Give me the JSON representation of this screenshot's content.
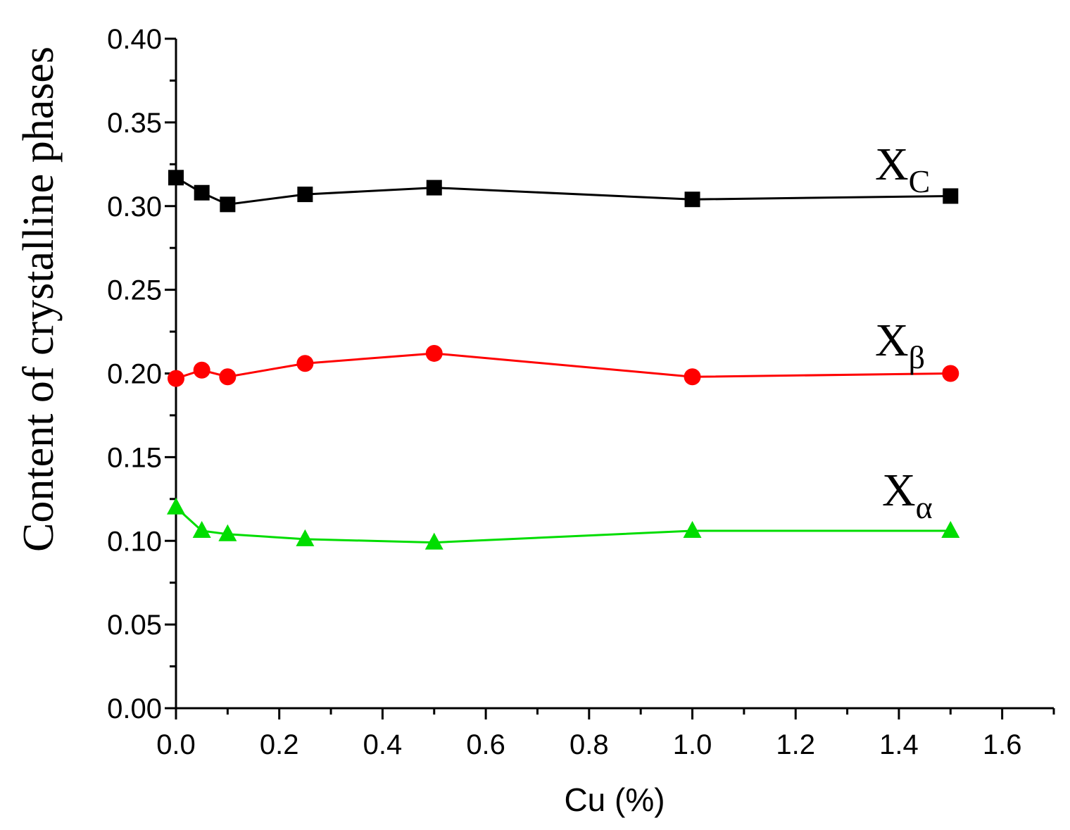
{
  "chart_data": {
    "type": "line",
    "title": "",
    "xlabel": "Cu (%)",
    "ylabel": "Content of crystalline phases",
    "xlim": [
      0,
      1.7
    ],
    "ylim": [
      0,
      0.4
    ],
    "x_ticks": [
      "0.0",
      "0.2",
      "0.4",
      "0.6",
      "0.8",
      "1.0",
      "1.2",
      "1.4",
      "1.6"
    ],
    "y_ticks": [
      "0.00",
      "0.05",
      "0.10",
      "0.15",
      "0.20",
      "0.25",
      "0.30",
      "0.35",
      "0.40"
    ],
    "grid": false,
    "x": [
      0,
      0.05,
      0.1,
      0.25,
      0.5,
      1.0,
      1.5
    ],
    "series": [
      {
        "name": "X_C",
        "label_main": "X",
        "label_sub": "C",
        "marker": "square",
        "color": "#000000",
        "values": [
          0.317,
          0.308,
          0.301,
          0.307,
          0.311,
          0.304,
          0.306
        ]
      },
      {
        "name": "X_β",
        "label_main": "X",
        "label_sub": "β",
        "marker": "circle",
        "color": "#ff0000",
        "values": [
          0.197,
          0.202,
          0.198,
          0.206,
          0.212,
          0.198,
          0.2
        ]
      },
      {
        "name": "X_α",
        "label_main": "X",
        "label_sub": "α",
        "marker": "triangle",
        "color": "#00dd00",
        "values": [
          0.12,
          0.106,
          0.104,
          0.101,
          0.099,
          0.106,
          0.106
        ]
      }
    ]
  }
}
